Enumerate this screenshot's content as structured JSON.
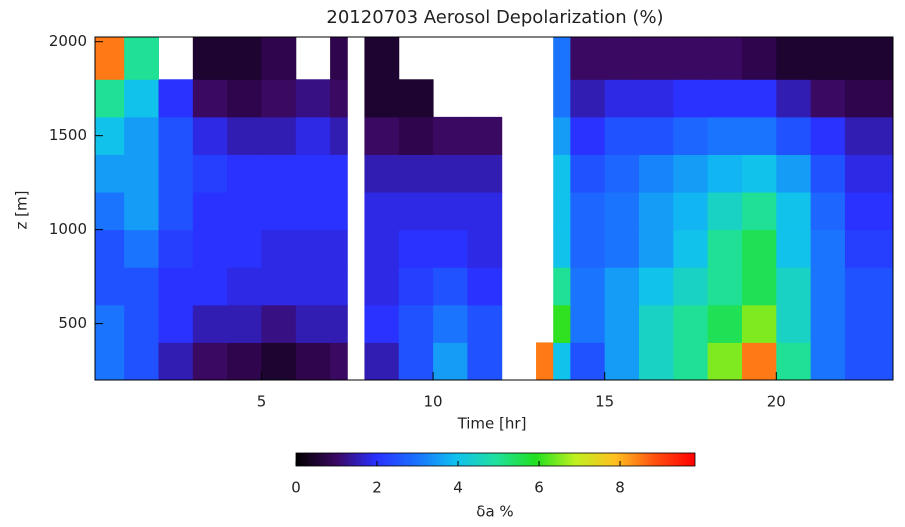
{
  "chart_data": {
    "type": "heatmap",
    "title": "20120703 Aerosol Depolarization (%)",
    "x_label": "Time [hr]",
    "y_label": "z [m]",
    "x_bins": [
      0.15,
      1,
      2,
      3,
      4,
      5,
      6,
      7,
      7.5,
      8,
      9,
      10,
      11,
      12,
      13,
      13.5,
      14,
      15,
      16,
      17,
      18,
      19,
      20,
      21,
      22,
      23.4
    ],
    "y_bins": [
      200,
      400,
      600,
      800,
      1000,
      1200,
      1400,
      1600,
      1800,
      2025
    ],
    "z": [
      [
        3,
        2.5,
        1.5,
        1,
        0.8,
        0.5,
        0.8,
        1,
        null,
        1.5,
        2.5,
        3.5,
        2.5,
        null,
        8.5,
        4,
        2.5,
        3.5,
        4.5,
        5,
        6.5,
        8.5,
        5,
        3,
        2.5
      ],
      [
        3,
        2.5,
        2,
        1.5,
        1.5,
        1.2,
        1.5,
        1.5,
        null,
        2,
        2.5,
        3,
        2.5,
        null,
        null,
        6,
        3,
        3.5,
        4.5,
        5,
        5.5,
        6.5,
        4.5,
        3,
        2.5
      ],
      [
        2.5,
        2.5,
        2,
        2,
        1.8,
        1.8,
        1.8,
        1.8,
        null,
        1.8,
        2.2,
        2.5,
        2,
        null,
        null,
        5,
        3,
        3.5,
        4,
        4.5,
        5,
        5.5,
        4.5,
        3,
        2.5
      ],
      [
        2.5,
        3,
        2.2,
        2,
        2,
        1.8,
        1.8,
        1.8,
        null,
        1.8,
        2,
        2,
        1.8,
        null,
        null,
        4,
        2.8,
        3,
        3.5,
        4,
        5,
        5.5,
        4,
        3,
        2.2
      ],
      [
        3,
        3.5,
        2.5,
        2,
        2,
        2,
        2,
        2,
        null,
        1.8,
        1.8,
        1.8,
        1.8,
        null,
        null,
        4,
        2.8,
        3,
        3.5,
        3.8,
        4.5,
        5,
        4,
        2.8,
        2
      ],
      [
        3.5,
        3.5,
        2.5,
        2.2,
        2,
        2,
        2,
        2,
        null,
        1.5,
        1.5,
        1.5,
        1.5,
        null,
        null,
        4,
        2.5,
        2.8,
        3.2,
        3.5,
        3.8,
        4,
        3.5,
        2.5,
        1.8
      ],
      [
        4,
        3.5,
        2.5,
        1.8,
        1.5,
        1.5,
        1.8,
        1.5,
        null,
        1,
        0.8,
        1,
        1,
        null,
        null,
        3.5,
        2,
        2.5,
        2.5,
        2.8,
        3,
        3,
        2.5,
        2,
        1.5
      ],
      [
        5,
        4,
        2,
        1,
        0.8,
        1,
        1.2,
        1,
        null,
        0.5,
        0.5,
        null,
        null,
        null,
        null,
        3,
        1.5,
        1.8,
        1.8,
        2,
        2,
        2,
        1.5,
        1,
        0.8
      ],
      [
        8.5,
        5,
        null,
        0.5,
        0.5,
        0.8,
        null,
        0.8,
        null,
        0.5,
        null,
        null,
        null,
        null,
        null,
        3,
        1,
        1,
        1,
        1,
        1,
        0.8,
        0.5,
        0.5,
        0.5
      ]
    ],
    "xlim": [
      0.15,
      23.4
    ],
    "xticks": [
      5,
      10,
      15,
      20
    ],
    "ylim": [
      200,
      2025
    ],
    "yticks": [
      500,
      1000,
      1500,
      2000
    ],
    "colormap": [
      "#000000",
      "#3a0860",
      "#2a30ff",
      "#1a70ff",
      "#10c0f0",
      "#20e0a0",
      "#20e020",
      "#c0f020",
      "#ffc020",
      "#ff5010",
      "#ff0000"
    ],
    "clim": [
      0,
      9.85
    ],
    "cticks": [
      0,
      2,
      4,
      6,
      8
    ],
    "colorbar_label": "δa %"
  }
}
